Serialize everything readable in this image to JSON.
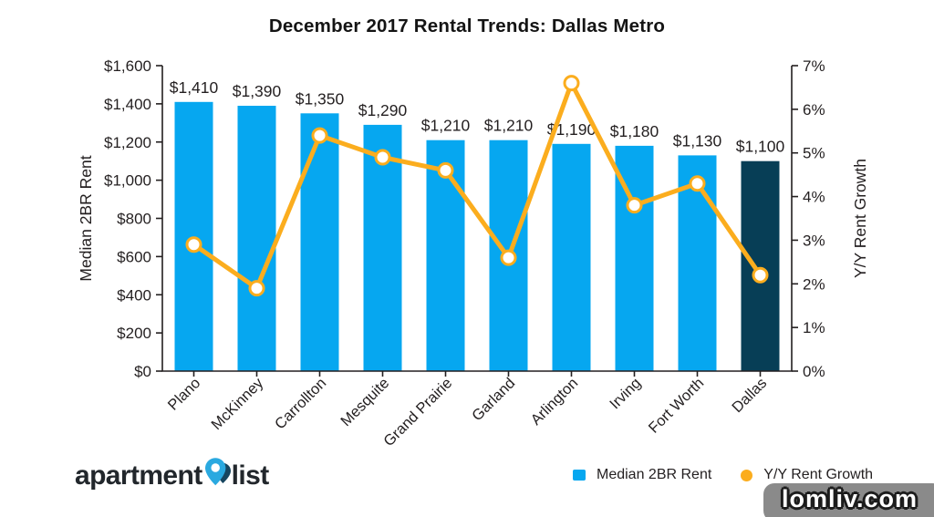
{
  "chart_data": {
    "type": "bar",
    "title": "December 2017 Rental Trends: Dallas Metro",
    "categories": [
      "Plano",
      "McKinney",
      "Carrollton",
      "Mesquite",
      "Grand Prairie",
      "Garland",
      "Arlington",
      "Irving",
      "Fort Worth",
      "Dallas"
    ],
    "series": [
      {
        "name": "Median 2BR Rent",
        "type": "bar",
        "axis": "left",
        "values": [
          1410,
          1390,
          1350,
          1290,
          1210,
          1210,
          1190,
          1180,
          1130,
          1100
        ],
        "labels": [
          "$1,410",
          "$1,390",
          "$1,350",
          "$1,290",
          "$1,210",
          "$1,210",
          "$1,190",
          "$1,180",
          "$1,130",
          "$1,100"
        ]
      },
      {
        "name": "Y/Y Rent Growth",
        "type": "line",
        "axis": "right",
        "values": [
          2.9,
          1.9,
          5.4,
          4.9,
          4.6,
          2.6,
          6.6,
          3.8,
          4.3,
          2.2
        ]
      }
    ],
    "left_axis": {
      "title": "Median 2BR Rent",
      "min": 0,
      "max": 1600,
      "step": 200,
      "tick_labels": [
        "$0",
        "$200",
        "$400",
        "$600",
        "$800",
        "$1,000",
        "$1,200",
        "$1,400",
        "$1,600"
      ]
    },
    "right_axis": {
      "title": "Y/Y Rent Growth",
      "min": 0,
      "max": 7,
      "step": 1,
      "tick_labels": [
        "0%",
        "1%",
        "2%",
        "3%",
        "4%",
        "5%",
        "6%",
        "7%"
      ]
    },
    "highlight_category": "Dallas",
    "grid": false,
    "legend_position": "bottom-right",
    "colors": {
      "bar": "#06a7f0",
      "bar_highlight": "#073e56",
      "line": "#fbad1e",
      "marker_fill": "#ffffff",
      "axis": "#231f20"
    }
  },
  "legend": {
    "items": [
      {
        "label": "Median 2BR Rent",
        "swatch": "square",
        "color": "#06a7f0"
      },
      {
        "label": "Y/Y Rent Growth",
        "swatch": "dot",
        "color": "#fbad1e"
      }
    ]
  },
  "logo": {
    "brand_left": "apartment",
    "brand_right": "list",
    "pin_colors": {
      "front": "#2aa9e0",
      "back": "#16455f",
      "hole": "#ffffff"
    }
  },
  "watermark": {
    "text": "lomliv.com"
  }
}
